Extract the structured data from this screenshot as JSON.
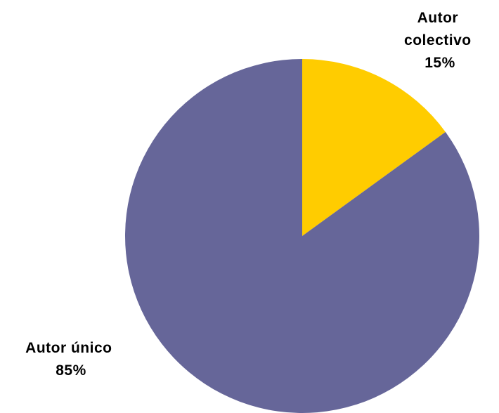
{
  "chart_data": {
    "type": "pie",
    "title": "",
    "start_angle_deg": 0,
    "direction": "clockwise",
    "legend": "none",
    "slices": [
      {
        "key": "colectivo",
        "label_lines": [
          "Autor",
          "colectivo"
        ],
        "value": 15,
        "value_label": "15%",
        "color": "#FFCC00"
      },
      {
        "key": "unico",
        "label_lines": [
          "Autor único"
        ],
        "value": 85,
        "value_label": "85%",
        "color": "#666699"
      }
    ]
  }
}
